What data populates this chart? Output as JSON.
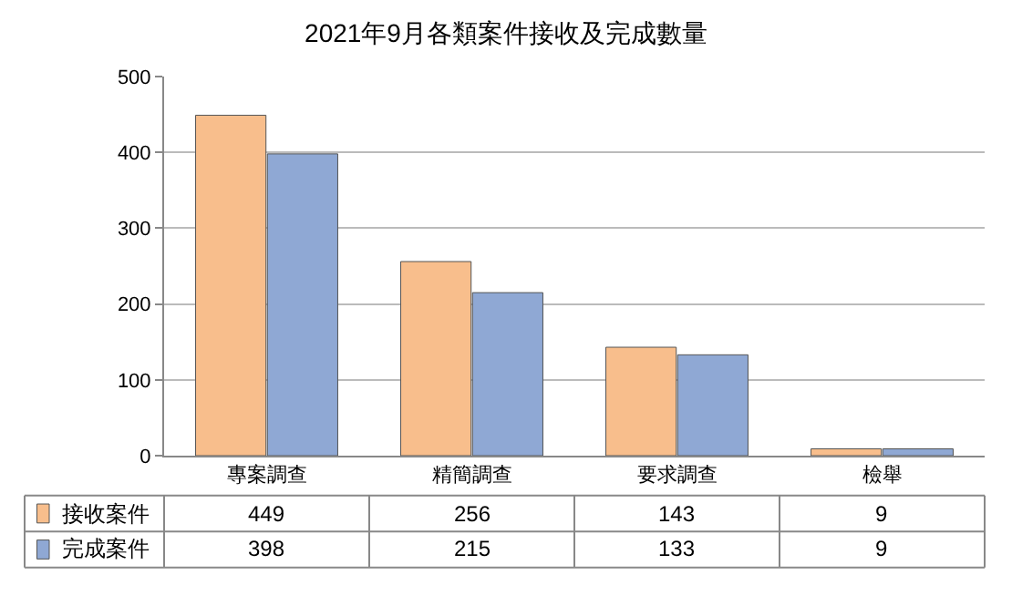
{
  "chart_data": {
    "type": "bar",
    "title": "2021年9月各類案件接收及完成數量",
    "categories": [
      "專案調查",
      "精簡調查",
      "要求調查",
      "檢舉"
    ],
    "series": [
      {
        "name": "接收案件",
        "color": "#f8be8c",
        "values": [
          449,
          256,
          143,
          9
        ]
      },
      {
        "name": "完成案件",
        "color": "#8fa8d4",
        "values": [
          398,
          215,
          133,
          9
        ]
      }
    ],
    "ylim": [
      0,
      500
    ],
    "yticks": [
      0,
      100,
      200,
      300,
      400,
      500
    ],
    "grid": "y",
    "legend": "bottom",
    "data_labels": true
  }
}
